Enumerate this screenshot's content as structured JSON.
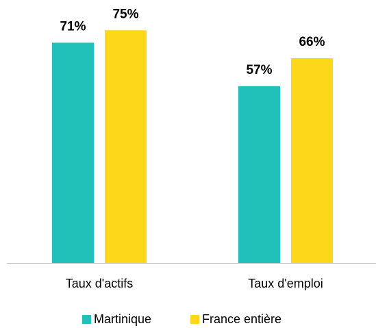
{
  "chart_data": {
    "type": "bar",
    "categories": [
      "Taux d'actifs",
      "Taux d'emploi"
    ],
    "series": [
      {
        "name": "Martinique",
        "color": "#21c1b9",
        "values": [
          71,
          57
        ],
        "value_labels": [
          "71%",
          "57%"
        ]
      },
      {
        "name": "France entière",
        "color": "#fdd81a",
        "values": [
          75,
          66
        ],
        "value_labels": [
          "75%",
          "66%"
        ]
      }
    ],
    "legend": "bottom"
  }
}
